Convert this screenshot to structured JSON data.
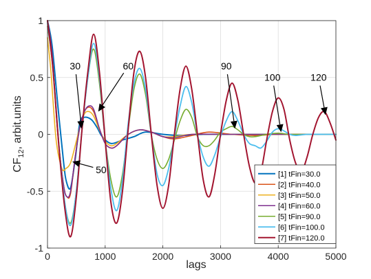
{
  "chart_data": {
    "type": "line",
    "xlabel": "lags",
    "ylabel": "CF",
    "ylabel_sub": "12",
    "ylabel_suffix": ", arbit.units",
    "xlim": [
      0,
      5000
    ],
    "ylim": [
      -1,
      1
    ],
    "xticks": [
      0,
      1000,
      2000,
      3000,
      4000,
      5000
    ],
    "yticks": [
      -1,
      -0.5,
      0,
      0.5,
      1
    ],
    "xtick_labels": [
      "0",
      "1000",
      "2000",
      "3000",
      "4000",
      "5000"
    ],
    "ytick_labels": [
      "-1",
      "-0.5",
      "0",
      "0.5",
      "1"
    ],
    "grid": true,
    "legend_position": "bottom-right",
    "series": [
      {
        "name": "[1] tFin=30.0",
        "color": "#0072BD",
        "width": 2.0,
        "x": [
          0,
          80,
          180,
          280,
          330,
          400,
          480,
          560,
          640,
          760,
          860,
          950,
          1100,
          1300,
          1500,
          1700,
          2000,
          2300,
          2700,
          3200,
          3700,
          4200,
          4700,
          5000
        ],
        "y": [
          1.0,
          0.78,
          0.25,
          -0.25,
          -0.42,
          -0.47,
          -0.22,
          0.1,
          0.15,
          0.13,
          0.06,
          -0.02,
          -0.08,
          -0.05,
          -0.02,
          0.02,
          0.0,
          -0.01,
          0.0,
          0.0,
          0.0,
          0.0,
          0.0,
          0.0
        ]
      },
      {
        "name": "[2] tFin=40.0",
        "color": "#D95319",
        "width": 1.6,
        "x": [
          0,
          80,
          180,
          280,
          340,
          400,
          480,
          560,
          640,
          720,
          800,
          900,
          1000,
          1100,
          1200,
          1400,
          1600,
          1800,
          2000,
          2200,
          2500,
          2800,
          3200,
          3600,
          4000,
          5000
        ],
        "y": [
          1.0,
          0.7,
          0.0,
          -0.45,
          -0.55,
          -0.52,
          -0.2,
          0.06,
          0.2,
          0.24,
          0.2,
          0.05,
          -0.08,
          -0.12,
          -0.1,
          0.0,
          0.04,
          0.02,
          -0.02,
          -0.04,
          -0.01,
          0.02,
          0.0,
          -0.01,
          0.0,
          0.0
        ]
      },
      {
        "name": "[3] tFin=50.0",
        "color": "#EDB120",
        "width": 1.6,
        "x": [
          0,
          60,
          150,
          250,
          320,
          400,
          480,
          560,
          640,
          720,
          800,
          900,
          1000,
          1100,
          1200,
          1400,
          1600,
          1800,
          2000,
          2200,
          2500,
          3000,
          3500,
          4000,
          4500,
          5000
        ],
        "y": [
          0.85,
          0.55,
          -0.05,
          -0.3,
          -0.3,
          -0.25,
          -0.1,
          0.06,
          0.18,
          0.2,
          0.16,
          0.04,
          -0.06,
          -0.1,
          -0.08,
          0.0,
          0.04,
          0.02,
          -0.02,
          -0.02,
          0.0,
          0.0,
          0.0,
          0.0,
          0.0,
          0.0
        ]
      },
      {
        "name": "[4] tFin=60.0",
        "color": "#7E2F8E",
        "width": 1.6,
        "x": [
          0,
          80,
          180,
          280,
          340,
          400,
          480,
          560,
          640,
          720,
          800,
          900,
          1000,
          1100,
          1200,
          1400,
          1600,
          1800,
          2000,
          2200,
          2500,
          3000,
          3500,
          4000,
          5000
        ],
        "y": [
          1.0,
          0.7,
          0.0,
          -0.45,
          -0.55,
          -0.5,
          -0.2,
          0.06,
          0.2,
          0.25,
          0.22,
          0.05,
          -0.08,
          -0.12,
          -0.1,
          0.0,
          0.04,
          0.02,
          -0.02,
          -0.03,
          0.0,
          0.0,
          0.0,
          0.0,
          0.0
        ]
      },
      {
        "name": "[5] tFin=90.0",
        "color": "#77AC30",
        "width": 1.6,
        "x": [
          0,
          90,
          200,
          300,
          400,
          500,
          600,
          700,
          800,
          900,
          1000,
          1100,
          1200,
          1300,
          1400,
          1500,
          1600,
          1700,
          1800,
          1900,
          2000,
          2100,
          2200,
          2300,
          2400,
          2500,
          2600,
          2700,
          2800,
          2900,
          3000,
          3100,
          3200,
          3300,
          3400,
          3500,
          3600,
          3800,
          4000,
          4200,
          4500,
          5000
        ],
        "y": [
          0.95,
          0.6,
          -0.1,
          -0.6,
          -0.78,
          -0.5,
          0.05,
          0.5,
          0.75,
          0.45,
          -0.05,
          -0.4,
          -0.55,
          -0.35,
          0.05,
          0.4,
          0.53,
          0.35,
          0.0,
          -0.22,
          -0.3,
          -0.22,
          -0.05,
          0.12,
          0.22,
          0.15,
          -0.02,
          -0.1,
          -0.1,
          -0.05,
          0.02,
          0.05,
          0.07,
          0.04,
          0.0,
          -0.02,
          -0.02,
          0.0,
          0.01,
          0.0,
          0.0,
          0.0
        ]
      },
      {
        "name": "[6] tFin=100.0",
        "color": "#4DBEEE",
        "width": 1.8,
        "x": [
          0,
          90,
          200,
          300,
          400,
          500,
          600,
          700,
          800,
          900,
          1000,
          1100,
          1200,
          1300,
          1400,
          1500,
          1600,
          1700,
          1800,
          1900,
          2000,
          2100,
          2200,
          2300,
          2400,
          2500,
          2600,
          2700,
          2800,
          2900,
          3000,
          3100,
          3200,
          3300,
          3400,
          3500,
          3600,
          3700,
          3800,
          3900,
          4000,
          4100,
          4200,
          4300,
          4500,
          4800,
          5000
        ],
        "y": [
          0.98,
          0.6,
          -0.1,
          -0.6,
          -0.8,
          -0.5,
          0.05,
          0.5,
          0.8,
          0.5,
          -0.05,
          -0.48,
          -0.67,
          -0.4,
          0.1,
          0.45,
          0.58,
          0.4,
          0.0,
          -0.35,
          -0.45,
          -0.3,
          -0.02,
          0.25,
          0.42,
          0.28,
          0.0,
          -0.2,
          -0.28,
          -0.18,
          -0.02,
          0.12,
          0.2,
          0.12,
          0.0,
          -0.08,
          -0.1,
          -0.12,
          -0.06,
          0.02,
          0.05,
          0.03,
          0.0,
          -0.01,
          0.0,
          0.0,
          0.0
        ]
      },
      {
        "name": "[7] tFin=120.0",
        "color": "#A2142F",
        "width": 2.0,
        "x": [
          0,
          90,
          200,
          300,
          400,
          500,
          600,
          700,
          800,
          900,
          1000,
          1100,
          1200,
          1300,
          1400,
          1500,
          1600,
          1700,
          1800,
          1900,
          2000,
          2100,
          2200,
          2300,
          2400,
          2500,
          2600,
          2700,
          2800,
          2900,
          3000,
          3100,
          3200,
          3300,
          3400,
          3500,
          3600,
          3700,
          3800,
          3900,
          4000,
          4100,
          4200,
          4300,
          4400,
          4500,
          4600,
          4700,
          4800,
          4900,
          5000
        ],
        "y": [
          1.0,
          0.6,
          -0.12,
          -0.65,
          -0.9,
          -0.55,
          0.05,
          0.55,
          0.88,
          0.55,
          -0.05,
          -0.6,
          -0.78,
          -0.5,
          0.05,
          0.55,
          0.73,
          0.5,
          0.0,
          -0.45,
          -0.65,
          -0.45,
          0.0,
          0.4,
          0.6,
          0.4,
          0.0,
          -0.4,
          -0.55,
          -0.35,
          0.0,
          0.3,
          0.45,
          0.3,
          0.0,
          -0.28,
          -0.43,
          -0.33,
          -0.05,
          0.2,
          0.32,
          0.22,
          -0.05,
          -0.25,
          -0.33,
          -0.2,
          0.0,
          0.15,
          0.2,
          0.1,
          -0.05
        ]
      }
    ],
    "annotations": [
      {
        "text": "30",
        "x": 480,
        "y": 0.57,
        "arrow_to_x": 590,
        "arrow_to_y": 0.05
      },
      {
        "text": "60",
        "x": 1400,
        "y": 0.57,
        "arrow_to_x": 880,
        "arrow_to_y": 0.2
      },
      {
        "text": "50",
        "x": 930,
        "y": -0.34,
        "arrow_to_x": 430,
        "arrow_to_y": -0.24
      },
      {
        "text": "90",
        "x": 3100,
        "y": 0.57,
        "arrow_to_x": 3250,
        "arrow_to_y": 0.05
      },
      {
        "text": "100",
        "x": 3900,
        "y": 0.47,
        "arrow_to_x": 4050,
        "arrow_to_y": 0.02
      },
      {
        "text": "120",
        "x": 4700,
        "y": 0.47,
        "arrow_to_x": 4820,
        "arrow_to_y": 0.17
      }
    ]
  }
}
